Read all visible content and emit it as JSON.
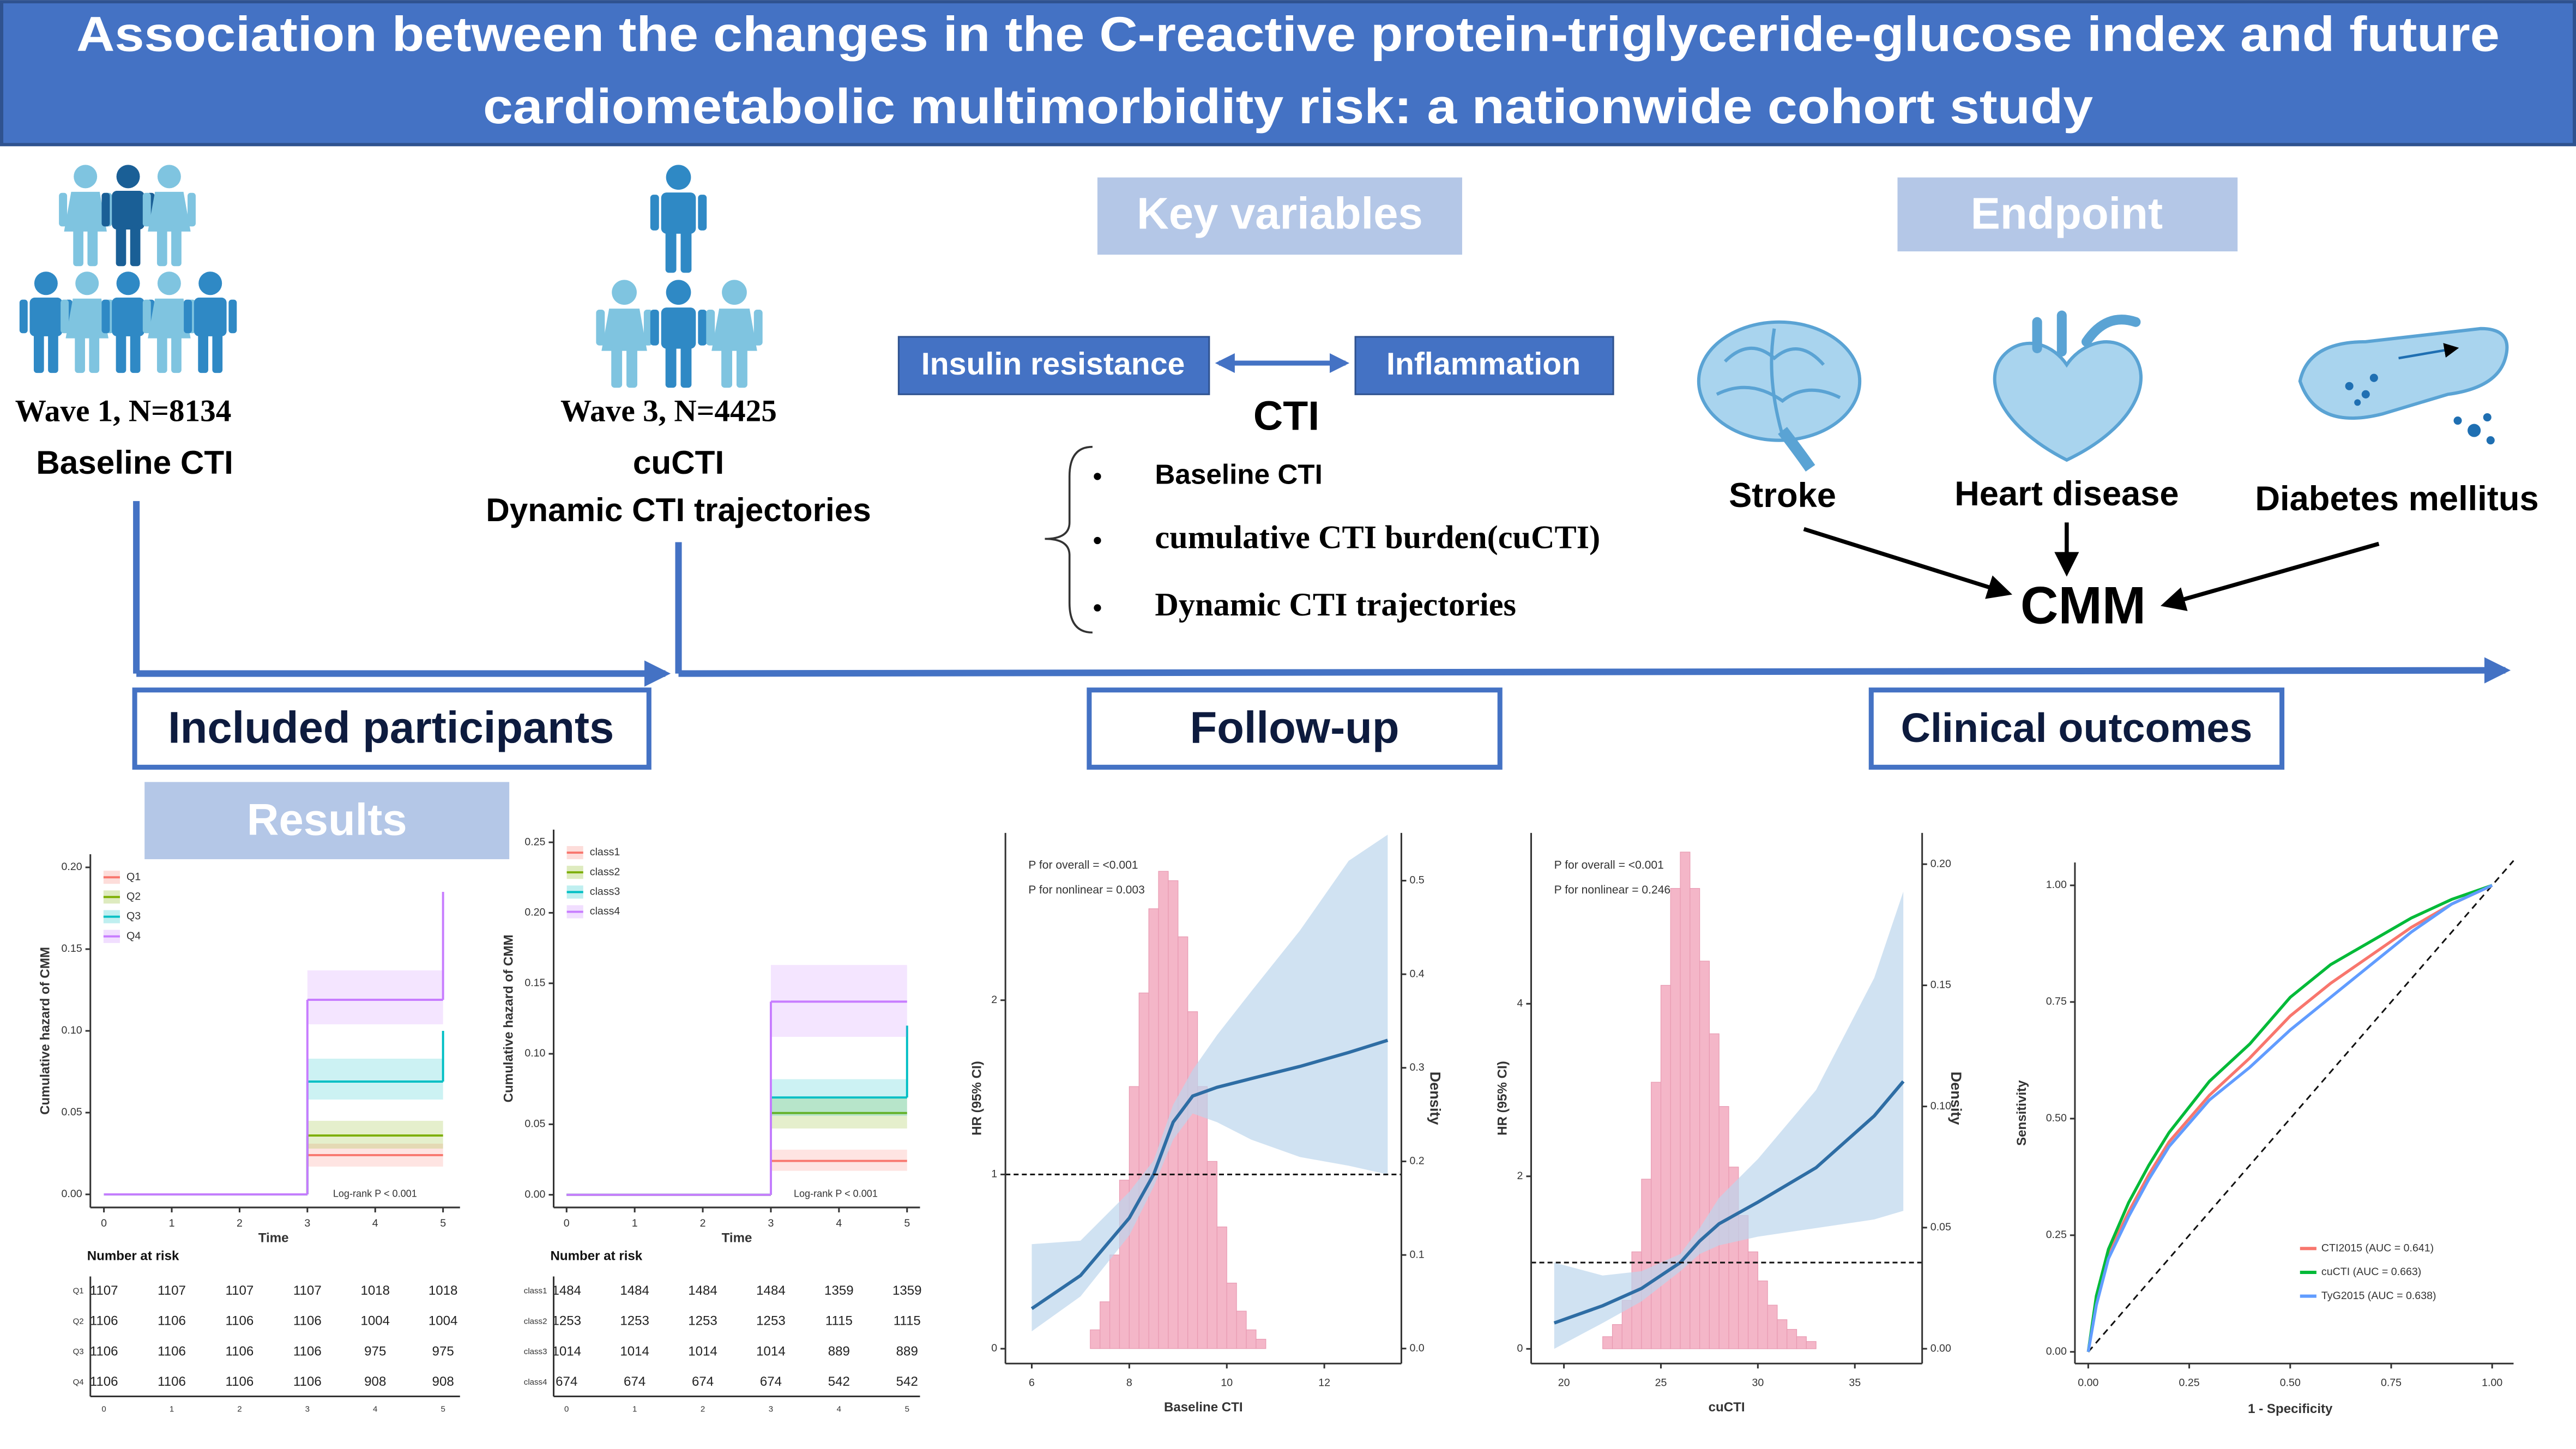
{
  "header": {
    "title_line1": "Association between the changes in the C-reactive protein-triglyceride-glucose index and future",
    "title_line2": "cardiometabolic multimorbidity risk: a nationwide cohort study"
  },
  "participants": {
    "wave1": "Wave 1, N=8134",
    "wave1_variable": "Baseline CTI",
    "wave3": "Wave 3, N=4425",
    "wave3_variable1": "cuCTI",
    "wave3_variable2": "Dynamic CTI trajectories"
  },
  "key_variables": {
    "heading": "Key variables",
    "left": "Insulin resistance",
    "right": "Inflammation",
    "center": "CTI",
    "items": [
      "Baseline CTI",
      "cumulative CTI burden(cuCTI)",
      "Dynamic CTI trajectories"
    ]
  },
  "endpoint": {
    "heading": "Endpoint",
    "items": [
      "Stroke",
      "Heart disease",
      "Diabetes mellitus"
    ],
    "outcome": "CMM"
  },
  "timeline": {
    "labels": [
      "Included participants",
      "Follow-up",
      "Clinical outcomes"
    ]
  },
  "results": {
    "heading": "Results",
    "panels": [
      {
        "type": "km",
        "y_label": "Cumulative hazard of CMM",
        "x_label": "Time",
        "annotation": "Log-rank P < 0.001",
        "risk_title": "Number at risk",
        "xlim": [
          -0.2,
          5.25
        ],
        "ylim": [
          -0.008,
          0.208
        ],
        "xticks": [
          0,
          1,
          2,
          3,
          4,
          5
        ],
        "yticks": [
          {
            "value": 0,
            "label": "0.00"
          },
          0.05,
          {
            "value": 0.1,
            "label": "0.10"
          },
          0.15,
          {
            "value": 0.2,
            "label": "0.20"
          }
        ],
        "step_times": [
          0,
          3,
          5
        ],
        "series": [
          {
            "name": "Q1",
            "color": "#f8766d",
            "values": [
              0,
              0.024,
              0.024
            ],
            "band": [
              0.017,
              0.031
            ],
            "at_risk": [
              1107,
              1107,
              1107,
              1107,
              1018,
              1018
            ]
          },
          {
            "name": "Q2",
            "color": "#7cae00",
            "values": [
              0,
              0.036,
              0.036
            ],
            "band": [
              0.028,
              0.045
            ],
            "at_risk": [
              1106,
              1106,
              1106,
              1106,
              1004,
              1004
            ]
          },
          {
            "name": "Q3",
            "color": "#00bfc4",
            "values": [
              0,
              0.069,
              0.1
            ],
            "band": [
              0.058,
              0.083
            ],
            "at_risk": [
              1106,
              1106,
              1106,
              1106,
              975,
              975
            ]
          },
          {
            "name": "Q4",
            "color": "#c77cff",
            "values": [
              0,
              0.119,
              0.185
            ],
            "band": [
              0.104,
              0.137
            ],
            "at_risk": [
              1106,
              1106,
              1106,
              1106,
              908,
              908
            ]
          }
        ]
      },
      {
        "type": "km",
        "y_label": "Cumulative hazard of CMM",
        "x_label": "Time",
        "annotation": "Log-rank P < 0.001",
        "risk_title": "Number at risk",
        "xlim": [
          -0.19,
          5.19
        ],
        "ylim": [
          -0.009,
          0.259
        ],
        "xticks": [
          0,
          1,
          2,
          3,
          4,
          5
        ],
        "yticks": [
          {
            "value": 0,
            "label": "0.00"
          },
          0.05,
          {
            "value": 0.1,
            "label": "0.10"
          },
          0.15,
          {
            "value": 0.2,
            "label": "0.20"
          },
          0.25
        ],
        "step_times": [
          0,
          3,
          5
        ],
        "series": [
          {
            "name": "class1",
            "color": "#f8766d",
            "values": [
              0,
              0.024,
              0.024
            ],
            "band": [
              0.017,
              0.032
            ],
            "at_risk": [
              1484,
              1484,
              1484,
              1484,
              1359,
              1359
            ]
          },
          {
            "name": "class2",
            "color": "#7cae00",
            "values": [
              0,
              0.058,
              0.058
            ],
            "band": [
              0.047,
              0.069
            ],
            "at_risk": [
              1253,
              1253,
              1253,
              1253,
              1115,
              1115
            ]
          },
          {
            "name": "class3",
            "color": "#00bfc4",
            "values": [
              0,
              0.069,
              0.12
            ],
            "band": [
              0.056,
              0.082
            ],
            "at_risk": [
              1014,
              1014,
              1014,
              1014,
              889,
              889
            ]
          },
          {
            "name": "class4",
            "color": "#c77cff",
            "values": [
              0,
              0.137,
              0.137
            ],
            "band": [
              0.112,
              0.163
            ],
            "at_risk": [
              674,
              674,
              674,
              674,
              542,
              542
            ]
          }
        ]
      },
      {
        "type": "rcs",
        "annotations": [
          "P for overall = <0.001",
          "P for nonlinear = 0.003"
        ],
        "y_label": "HR (95% CI)",
        "y2_label": "Density",
        "x_label": "Baseline CTI",
        "xlim": [
          5.46,
          13.58
        ],
        "ylim": [
          -0.085,
          2.96
        ],
        "y2lim": [
          -0.016,
          0.551
        ],
        "xticks": [
          6,
          8,
          10,
          12
        ],
        "yticks": [
          0,
          1,
          2
        ],
        "y2ticks": [
          {
            "value": 0,
            "label": "0.0"
          },
          0.1,
          0.2,
          0.3,
          0.4,
          0.5
        ],
        "reference": 1,
        "histogram": {
          "bins": [
            7.2,
            7.4,
            7.6,
            7.8,
            8.0,
            8.2,
            8.4,
            8.6,
            8.8,
            9.0,
            9.2,
            9.4,
            9.6,
            9.8,
            10.0,
            10.2,
            10.4,
            10.6,
            10.8
          ],
          "values": [
            0.02,
            0.05,
            0.1,
            0.18,
            0.28,
            0.38,
            0.47,
            0.51,
            0.5,
            0.44,
            0.36,
            0.28,
            0.2,
            0.13,
            0.07,
            0.04,
            0.02,
            0.01
          ]
        },
        "curve": {
          "x": [
            6.0,
            7.0,
            8.0,
            8.5,
            8.9,
            9.3,
            9.8,
            10.5,
            11.5,
            12.5,
            13.3
          ],
          "y": [
            0.23,
            0.42,
            0.75,
            1.0,
            1.3,
            1.45,
            1.5,
            1.55,
            1.62,
            1.7,
            1.77
          ],
          "lower": [
            0.1,
            0.3,
            0.65,
            0.93,
            1.2,
            1.35,
            1.3,
            1.2,
            1.1,
            1.05,
            1.0
          ],
          "upper": [
            0.6,
            0.62,
            0.9,
            1.08,
            1.4,
            1.6,
            1.8,
            2.05,
            2.4,
            2.8,
            2.95
          ]
        }
      },
      {
        "type": "rcs",
        "annotations": [
          "P for overall = <0.001",
          "P for nonlinear = 0.246"
        ],
        "y_label": "HR (95% CI)",
        "y2_label": "Density",
        "x_label": "cuCTI",
        "xlim": [
          18.31,
          38.47
        ],
        "ylim": [
          -0.17,
          5.98
        ],
        "y2lim": [
          -0.0061,
          0.2129
        ],
        "xticks": [
          20,
          25,
          30,
          35
        ],
        "yticks": [
          0,
          2,
          4
        ],
        "y2ticks": [
          {
            "value": 0,
            "label": "0.00"
          },
          0.05,
          {
            "value": 0.1,
            "label": "0.10"
          },
          0.15,
          {
            "value": 0.2,
            "label": "0.20"
          }
        ],
        "reference": 1,
        "histogram": {
          "bins": [
            22,
            22.5,
            23,
            23.5,
            24,
            24.5,
            25,
            25.5,
            26,
            26.5,
            27,
            27.5,
            28,
            28.5,
            29,
            29.5,
            30,
            30.5,
            31,
            31.5,
            32,
            32.5,
            33
          ],
          "values": [
            0.005,
            0.01,
            0.02,
            0.04,
            0.07,
            0.11,
            0.15,
            0.19,
            0.205,
            0.19,
            0.16,
            0.13,
            0.1,
            0.075,
            0.055,
            0.04,
            0.028,
            0.018,
            0.012,
            0.008,
            0.005,
            0.003
          ]
        },
        "curve": {
          "x": [
            19.5,
            22,
            24,
            26,
            27,
            28,
            30,
            33,
            36,
            37.5
          ],
          "y": [
            0.3,
            0.5,
            0.7,
            1.0,
            1.25,
            1.45,
            1.7,
            2.1,
            2.7,
            3.1
          ],
          "lower": [
            0.0,
            0.3,
            0.55,
            0.9,
            1.1,
            1.2,
            1.3,
            1.4,
            1.5,
            1.6
          ],
          "upper": [
            1.0,
            0.85,
            0.9,
            1.1,
            1.4,
            1.75,
            2.2,
            3.0,
            4.3,
            5.3
          ]
        }
      },
      {
        "type": "roc",
        "y_label": "Sensitivity",
        "x_label": "1 - Specificity",
        "xlim": [
          -0.033,
          1.053
        ],
        "ylim": [
          -0.025,
          1.049
        ],
        "xticks": [
          {
            "value": 0,
            "label": "0.00"
          },
          0.25,
          {
            "value": 0.5,
            "label": "0.50"
          },
          0.75,
          {
            "value": 1,
            "label": "1.00"
          }
        ],
        "yticks": [
          {
            "value": 0,
            "label": "0.00"
          },
          0.25,
          {
            "value": 0.5,
            "label": "0.50"
          },
          0.75,
          {
            "value": 1,
            "label": "1.00"
          }
        ],
        "x": [
          0,
          0.02,
          0.05,
          0.1,
          0.15,
          0.2,
          0.3,
          0.4,
          0.5,
          0.6,
          0.7,
          0.8,
          0.9,
          1
        ],
        "series": [
          {
            "name": "CTI2015 (AUC = 0.641)",
            "color": "#f8766d",
            "values": [
              0,
              0.11,
              0.21,
              0.3,
              0.38,
              0.45,
              0.55,
              0.63,
              0.72,
              0.79,
              0.85,
              0.91,
              0.96,
              1
            ]
          },
          {
            "name": "cuCTI (AUC = 0.663)",
            "color": "#00ba38",
            "values": [
              0,
              0.12,
              0.22,
              0.32,
              0.4,
              0.47,
              0.58,
              0.66,
              0.76,
              0.83,
              0.88,
              0.93,
              0.97,
              1
            ]
          },
          {
            "name": "TyG2015 (AUC = 0.638)",
            "color": "#619cff",
            "values": [
              0,
              0.1,
              0.2,
              0.29,
              0.37,
              0.44,
              0.54,
              0.61,
              0.69,
              0.76,
              0.83,
              0.9,
              0.96,
              1
            ]
          }
        ]
      }
    ]
  }
}
